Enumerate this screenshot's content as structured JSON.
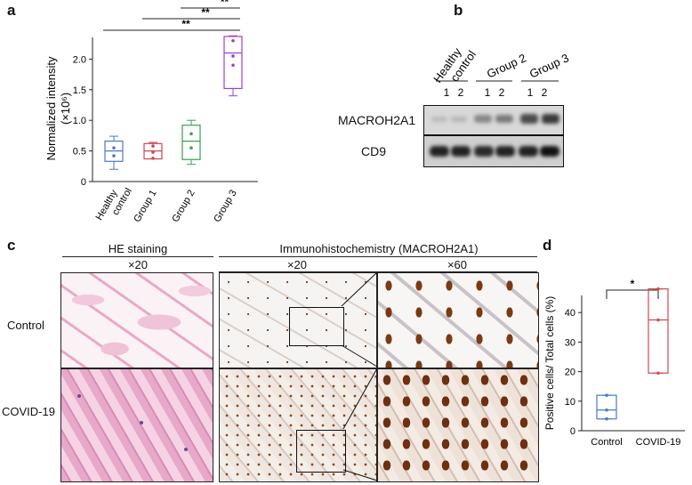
{
  "panel_a": {
    "letter": "a",
    "ylabel_line1": "Normalized intensity",
    "ylabel_line2": "(×10⁶)",
    "sig_labels": [
      "**",
      "**",
      "**"
    ]
  },
  "panel_b": {
    "letter": "b",
    "groups": [
      "Healthy control",
      "Group 2",
      "Group 3"
    ],
    "lane_labels": [
      "1",
      "2",
      "1",
      "2",
      "1",
      "2"
    ],
    "blot_labels": [
      "MACROH2A1",
      "CD9"
    ]
  },
  "panel_c": {
    "letter": "c",
    "col_header_he": "HE staining",
    "col_header_ihc": "Immunohistochemistry (MACROH2A1)",
    "mag_labels": [
      "×20",
      "×20",
      "×60"
    ],
    "row_labels": [
      "Control",
      "COVID-19"
    ]
  },
  "panel_d": {
    "letter": "d",
    "sig_label": "*"
  },
  "colors": {
    "healthy": "#4a78c8",
    "group1": "#c84a55",
    "group2": "#3aa050",
    "group3": "#a040c8",
    "control_d": "#4a78c8",
    "covid_d": "#d04a50"
  },
  "chart_data": [
    {
      "type": "box",
      "panel": "a",
      "categories": [
        "Healthy control",
        "Group 1",
        "Group 2",
        "Group 3"
      ],
      "ylabel": "Normalized intensity (×10⁶)",
      "ylim": [
        0,
        2.5
      ],
      "yticks": [
        0,
        0.5,
        1.0,
        1.5,
        2.0
      ],
      "ytick_labels": [
        "0",
        "0.5",
        "1.0",
        "1.5",
        "2.0"
      ],
      "boxes": [
        {
          "min": 0.2,
          "q1": 0.33,
          "median": 0.5,
          "q3": 0.66,
          "max": 0.74,
          "points": [
            0.55,
            0.42
          ]
        },
        {
          "min": 0.37,
          "q1": 0.37,
          "median": 0.5,
          "q3": 0.62,
          "max": 0.64,
          "points": [
            0.58,
            0.48,
            0.38
          ]
        },
        {
          "min": 0.28,
          "q1": 0.36,
          "median": 0.66,
          "q3": 0.92,
          "max": 1.0,
          "points": [
            0.78,
            0.55
          ]
        },
        {
          "min": 1.4,
          "q1": 1.52,
          "median": 2.1,
          "q3": 2.37,
          "max": 2.38,
          "points": [
            2.3,
            2.05,
            1.9
          ]
        }
      ],
      "significance": [
        {
          "from": 0,
          "to": 3,
          "label": "**"
        },
        {
          "from": 1,
          "to": 3,
          "label": "**"
        },
        {
          "from": 2,
          "to": 3,
          "label": "**"
        }
      ]
    },
    {
      "type": "box",
      "panel": "d",
      "categories": [
        "Control",
        "COVID-19"
      ],
      "ylabel": "Positive cells/ Total cells (%)",
      "ylim": [
        0,
        50
      ],
      "yticks": [
        0,
        10,
        20,
        30,
        40
      ],
      "ytick_labels": [
        "0",
        "10",
        "20",
        "30",
        "40"
      ],
      "boxes": [
        {
          "min": 4,
          "q1": 4,
          "median": 7,
          "q3": 12,
          "max": 12,
          "points": [
            12,
            7,
            4
          ]
        },
        {
          "min": 19.5,
          "q1": 19.5,
          "median": 37.5,
          "q3": 48,
          "max": 48,
          "points": [
            48,
            37.5,
            19.5
          ]
        }
      ],
      "significance": [
        {
          "from": 0,
          "to": 1,
          "label": "*"
        }
      ]
    }
  ]
}
